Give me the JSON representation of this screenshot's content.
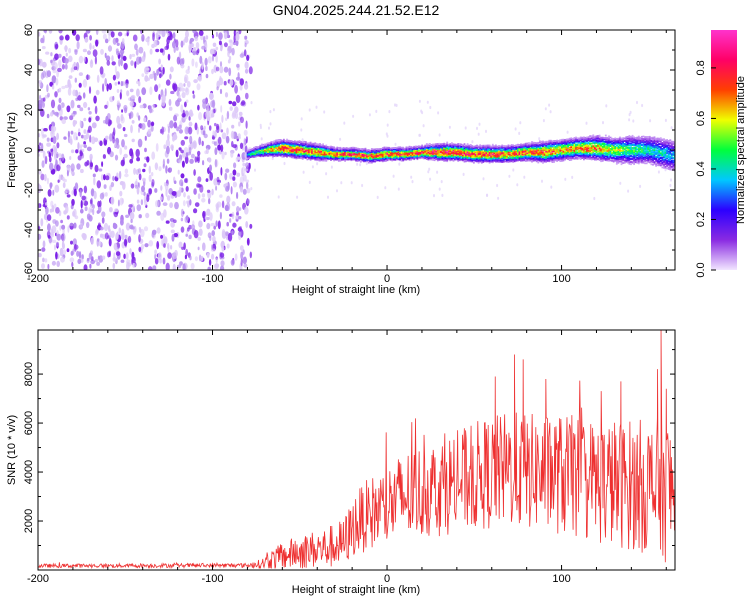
{
  "figure_title": "GN04.2025.244.21.52.E12",
  "chart_data": [
    {
      "type": "heatmap",
      "title": "GN04.2025.244.21.52.E12",
      "xlabel": "Height of straight line (km)",
      "ylabel": "Frequency (Hz)",
      "xlim": [
        -200,
        165
      ],
      "ylim": [
        -60,
        60
      ],
      "xticks": [
        -200,
        -100,
        0,
        100
      ],
      "yticks": [
        -60,
        -40,
        -20,
        0,
        20,
        40,
        60
      ],
      "colorbar": {
        "label": "Normalized spectral amplitude",
        "range": [
          0.0,
          0.95
        ],
        "ticks": [
          "0.0",
          "0.2",
          "0.4",
          "0.6",
          "0.8"
        ],
        "tick_values": [
          0.0,
          0.2,
          0.4,
          0.6,
          0.8
        ],
        "stops": [
          "#f2e6ff",
          "#8a2be2",
          "#2c00ff",
          "#00c8ff",
          "#00ff3c",
          "#f0ff00",
          "#ff4000",
          "#ff0066",
          "#ff33cc"
        ]
      },
      "noise_region": {
        "x_from": -200,
        "x_to": -78,
        "y_from": -60,
        "y_to": 60,
        "amplitude": 0.1
      },
      "ridge": {
        "x": [
          -80,
          -70,
          -60,
          -50,
          -40,
          -30,
          -20,
          -10,
          0,
          10,
          20,
          30,
          40,
          50,
          60,
          70,
          80,
          90,
          100,
          110,
          120,
          130,
          140,
          150,
          160,
          165
        ],
        "y": [
          -2,
          0,
          1,
          0,
          -1,
          -2,
          -2,
          -3,
          -2,
          -2,
          -1,
          -1,
          -1,
          -2,
          -2,
          -2,
          -1,
          -1,
          0,
          1,
          1,
          0,
          0,
          0,
          -2,
          -3
        ],
        "width": [
          2,
          3,
          4,
          4,
          4,
          3,
          3,
          3,
          3,
          3,
          3,
          4,
          4,
          4,
          4,
          4,
          4,
          5,
          5,
          5,
          6,
          6,
          7,
          7,
          8,
          8
        ],
        "peak": [
          0.4,
          0.6,
          0.8,
          0.8,
          0.75,
          0.75,
          0.8,
          0.8,
          0.8,
          0.8,
          0.8,
          0.85,
          0.85,
          0.8,
          0.8,
          0.75,
          0.8,
          0.8,
          0.7,
          0.75,
          0.7,
          0.6,
          0.5,
          0.45,
          0.4,
          0.35
        ]
      }
    },
    {
      "type": "line",
      "title": "",
      "xlabel": "Height of straight line (km)",
      "ylabel": "SNR (10 * v/v)",
      "xlim": [
        -200,
        165
      ],
      "ylim": [
        0,
        9800
      ],
      "xticks": [
        -200,
        -100,
        0,
        100
      ],
      "yticks": [
        2000,
        4000,
        6000,
        8000
      ],
      "color": "#ee3030",
      "envelope": {
        "x": [
          -200,
          -80,
          -72,
          -65,
          -55,
          -45,
          -35,
          -25,
          -18,
          -10,
          0,
          10,
          25,
          40,
          55,
          70,
          85,
          100,
          120,
          140,
          150,
          160,
          165
        ],
        "mean": [
          170,
          190,
          250,
          450,
          650,
          800,
          900,
          1100,
          1900,
          2300,
          2600,
          3000,
          3300,
          3600,
          3900,
          4100,
          4000,
          3900,
          3600,
          3500,
          3400,
          3300,
          3200
        ],
        "spread": [
          80,
          90,
          200,
          450,
          650,
          750,
          850,
          1000,
          1300,
          1500,
          1700,
          1900,
          2000,
          2100,
          2300,
          2400,
          2400,
          2500,
          2600,
          2700,
          2800,
          3000,
          3000
        ]
      },
      "peaks": [
        {
          "x": 62,
          "y": 7900
        },
        {
          "x": 73,
          "y": 8800
        },
        {
          "x": 78,
          "y": 8600
        },
        {
          "x": 91,
          "y": 7800
        },
        {
          "x": 134,
          "y": 7700
        },
        {
          "x": 155,
          "y": 8200
        },
        {
          "x": 157,
          "y": 9800
        },
        {
          "x": 160,
          "y": 7400
        }
      ]
    }
  ]
}
